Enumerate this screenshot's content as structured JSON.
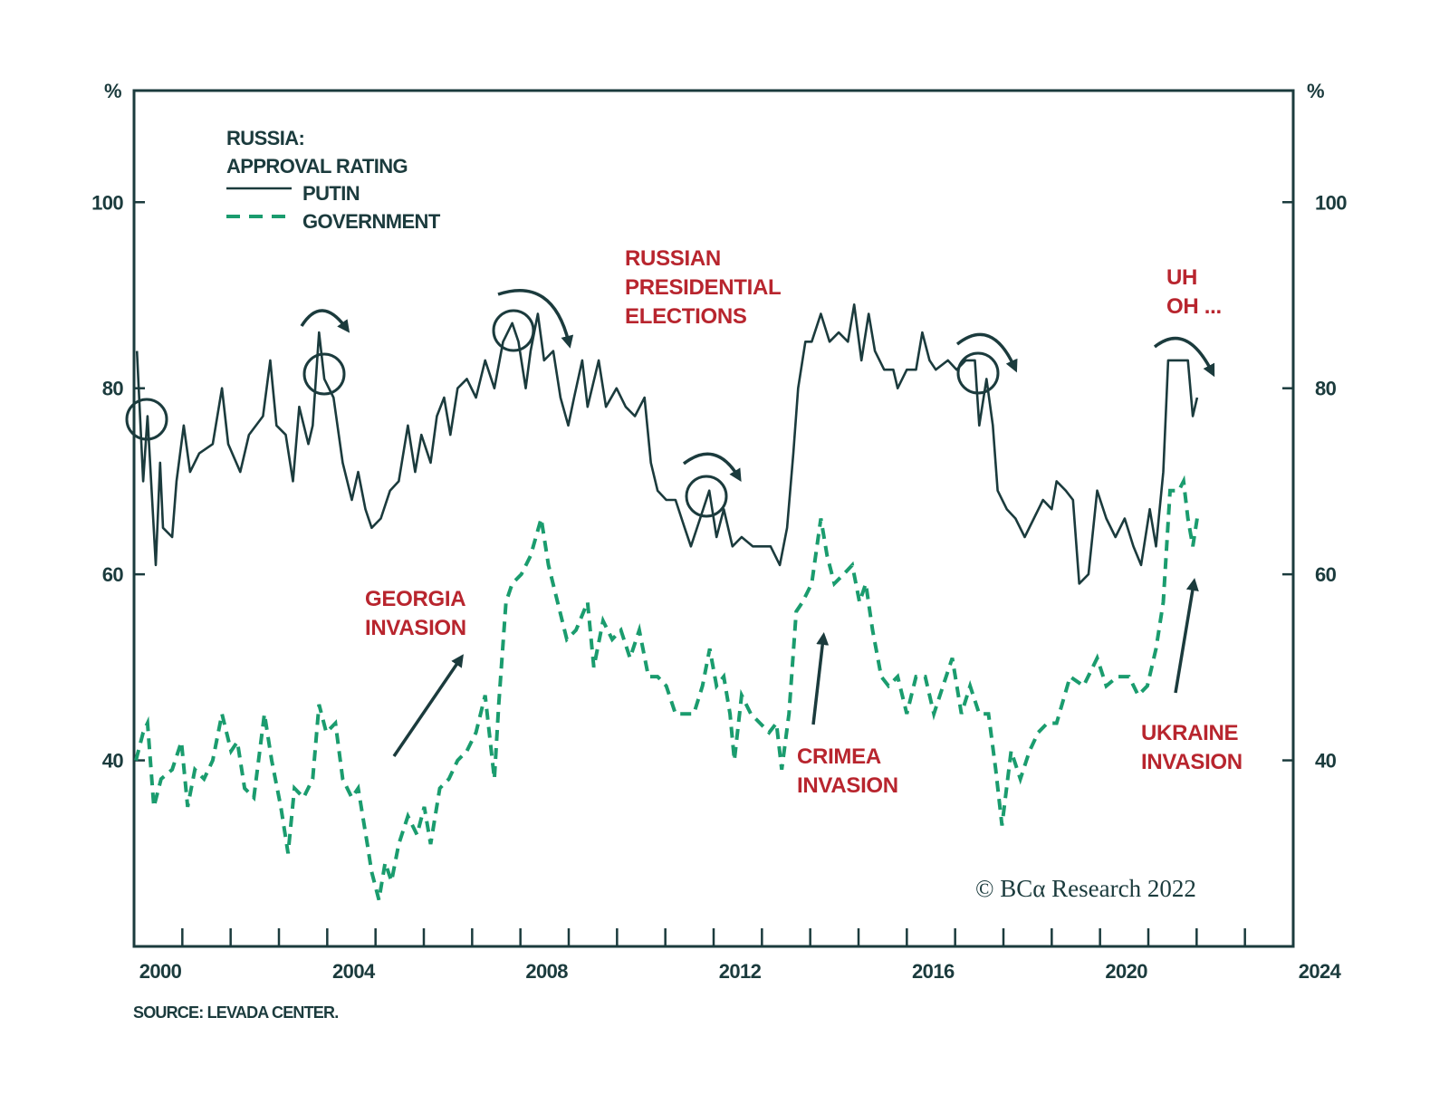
{
  "chart_data": {
    "type": "line",
    "title": "RUSSIA:",
    "subtitle": "APPROVAL RATING",
    "y_unit_left": "%",
    "y_unit_right": "%",
    "xlim": [
      2000,
      2024
    ],
    "ylim": [
      20,
      112
    ],
    "x_ticks": [
      2000,
      2004,
      2008,
      2012,
      2016,
      2020,
      2024
    ],
    "x_tick_labels": [
      "2000",
      "2004",
      "2008",
      "2012",
      "2016",
      "2020",
      "2024"
    ],
    "y_ticks": [
      40,
      60,
      80,
      100
    ],
    "y_tick_labels": [
      "40",
      "60",
      "80",
      "100"
    ],
    "minor_x_ticks": "yearly",
    "grid": false,
    "legend_placement": "top-left",
    "colors": {
      "axis": "#1b3b3d",
      "putin": "#1b3b3d",
      "government": "#1a9c6e",
      "annotation": "#b8252e"
    },
    "series": [
      {
        "name": "PUTIN",
        "style": "solid",
        "x": [
          2000.06,
          2000.19,
          2000.28,
          2000.45,
          2000.54,
          2000.6,
          2000.79,
          2000.88,
          2001.03,
          2001.16,
          2001.35,
          2001.63,
          2001.82,
          2001.95,
          2002.2,
          2002.38,
          2002.67,
          2002.82,
          2002.95,
          2003.14,
          2003.29,
          2003.42,
          2003.61,
          2003.7,
          2003.83,
          2003.94,
          2004.13,
          2004.32,
          2004.51,
          2004.64,
          2004.79,
          2004.92,
          2005.11,
          2005.3,
          2005.48,
          2005.67,
          2005.82,
          2005.95,
          2006.14,
          2006.27,
          2006.42,
          2006.55,
          2006.7,
          2006.89,
          2007.08,
          2007.27,
          2007.46,
          2007.64,
          2007.83,
          2007.96,
          2008.11,
          2008.21,
          2008.36,
          2008.49,
          2008.68,
          2008.83,
          2008.99,
          2009.11,
          2009.28,
          2009.39,
          2009.62,
          2009.77,
          2009.99,
          2010.18,
          2010.37,
          2010.57,
          2010.7,
          2010.84,
          2011.02,
          2011.21,
          2011.4,
          2011.53,
          2011.72,
          2011.91,
          2012.06,
          2012.21,
          2012.39,
          2012.58,
          2012.81,
          2013.0,
          2013.18,
          2013.37,
          2013.52,
          2013.65,
          2013.75,
          2013.9,
          2014.03,
          2014.22,
          2014.4,
          2014.59,
          2014.78,
          2014.91,
          2015.06,
          2015.21,
          2015.34,
          2015.53,
          2015.72,
          2015.81,
          2016.0,
          2016.19,
          2016.32,
          2016.47,
          2016.6,
          2016.85,
          2017.03,
          2017.22,
          2017.41,
          2017.5,
          2017.65,
          2017.78,
          2017.88,
          2018.07,
          2018.25,
          2018.44,
          2018.63,
          2018.82,
          2019.0,
          2019.1,
          2019.29,
          2019.44,
          2019.57,
          2019.76,
          2019.94,
          2020.13,
          2020.32,
          2020.51,
          2020.69,
          2020.85,
          2021.03,
          2021.16,
          2021.31,
          2021.41,
          2021.63,
          2021.82,
          2021.92,
          2022.01
        ],
        "y": [
          84,
          70,
          77,
          61,
          72,
          65,
          64,
          70,
          76,
          71,
          73,
          74,
          80,
          74,
          71,
          75,
          77,
          83,
          76,
          75,
          70,
          78,
          74,
          76,
          86,
          81,
          79,
          72,
          68,
          71,
          67,
          65,
          66,
          69,
          70,
          76,
          71,
          75,
          72,
          77,
          79,
          75,
          80,
          81,
          79,
          83,
          80,
          85,
          87,
          85,
          80,
          84,
          88,
          83,
          84,
          79,
          76,
          79,
          83,
          78,
          83,
          78,
          80,
          78,
          77,
          79,
          72,
          69,
          68,
          68,
          65,
          63,
          66,
          69,
          64,
          67,
          63,
          64,
          63,
          63,
          63,
          61,
          65,
          73,
          80,
          85,
          85,
          88,
          85,
          86,
          85,
          89,
          83,
          88,
          84,
          82,
          82,
          80,
          82,
          82,
          86,
          83,
          82,
          83,
          82,
          83,
          83,
          76,
          81,
          76,
          69,
          67,
          66,
          64,
          66,
          68,
          67,
          70,
          69,
          68,
          59,
          60,
          69,
          66,
          64,
          66,
          63,
          61,
          67,
          63,
          71,
          83,
          83,
          83,
          77,
          79
        ]
      },
      {
        "name": "GOVERNMENT",
        "style": "dashed",
        "x": [
          2000.04,
          2000.19,
          2000.28,
          2000.41,
          2000.56,
          2000.79,
          2000.98,
          2001.11,
          2001.26,
          2001.45,
          2001.63,
          2001.82,
          2002.01,
          2002.14,
          2002.29,
          2002.48,
          2002.7,
          2002.85,
          2003.04,
          2003.19,
          2003.32,
          2003.51,
          2003.7,
          2003.83,
          2003.98,
          2004.17,
          2004.32,
          2004.51,
          2004.64,
          2004.83,
          2004.92,
          2005.07,
          2005.2,
          2005.33,
          2005.48,
          2005.67,
          2005.86,
          2006.01,
          2006.14,
          2006.33,
          2006.52,
          2006.7,
          2006.89,
          2007.08,
          2007.27,
          2007.46,
          2007.55,
          2007.7,
          2007.83,
          2008.02,
          2008.21,
          2008.43,
          2008.58,
          2008.77,
          2008.96,
          2009.15,
          2009.39,
          2009.52,
          2009.71,
          2009.9,
          2010.08,
          2010.27,
          2010.46,
          2010.65,
          2010.84,
          2011.02,
          2011.21,
          2011.4,
          2011.59,
          2011.77,
          2011.92,
          2012.06,
          2012.21,
          2012.34,
          2012.43,
          2012.58,
          2012.77,
          2012.96,
          2013.15,
          2013.3,
          2013.41,
          2013.56,
          2013.71,
          2013.84,
          2014.03,
          2014.22,
          2014.35,
          2014.5,
          2014.69,
          2014.87,
          2015.02,
          2015.15,
          2015.29,
          2015.47,
          2015.62,
          2015.81,
          2016.0,
          2016.19,
          2016.38,
          2016.56,
          2016.75,
          2016.94,
          2017.13,
          2017.31,
          2017.5,
          2017.69,
          2017.84,
          2017.97,
          2018.16,
          2018.35,
          2018.54,
          2018.72,
          2018.91,
          2019.1,
          2019.38,
          2019.66,
          2019.94,
          2020.13,
          2020.36,
          2020.6,
          2020.79,
          2020.98,
          2021.16,
          2021.31,
          2021.45,
          2021.63,
          2021.73,
          2021.82,
          2021.92,
          2022.01
        ],
        "y": [
          40,
          43,
          44,
          35,
          38,
          39,
          42,
          35,
          39,
          38,
          40,
          45,
          41,
          42,
          37,
          36,
          45,
          40,
          35,
          30,
          37,
          36,
          38,
          46,
          43,
          44,
          38,
          36,
          37,
          31,
          28,
          25,
          29,
          27,
          31,
          34,
          32,
          35,
          31,
          37,
          38,
          40,
          41,
          43,
          47,
          38,
          46,
          57,
          59,
          60,
          62,
          66,
          61,
          57,
          53,
          54,
          57,
          50,
          55,
          53,
          54,
          51,
          54,
          49,
          49,
          48,
          45,
          45,
          45,
          48,
          52,
          48,
          49,
          45,
          40,
          47,
          45,
          44,
          43,
          44,
          39,
          45,
          56,
          57,
          59,
          66,
          62,
          59,
          60,
          61,
          57,
          59,
          54,
          49,
          48,
          49,
          45,
          49,
          49,
          45,
          48,
          51,
          45,
          48,
          45,
          45,
          39,
          33,
          41,
          38,
          41,
          43,
          44,
          44,
          49,
          48,
          51,
          48,
          49,
          49,
          47,
          48,
          52,
          57,
          69,
          69,
          70,
          66,
          63,
          66
        ]
      }
    ],
    "annotations": [
      {
        "lines": [
          "RUSSIAN",
          "PRESIDENTIAL",
          "ELECTIONS"
        ]
      },
      {
        "lines": [
          "UH",
          "OH ..."
        ]
      },
      {
        "lines": [
          "GEORGIA",
          "INVASION"
        ]
      },
      {
        "lines": [
          "CRIMEA",
          "INVASION"
        ]
      },
      {
        "lines": [
          "UKRAINE",
          "INVASION"
        ]
      }
    ],
    "copyright": "© BCα Research 2022",
    "source": "SOURCE: LEVADA CENTER."
  }
}
